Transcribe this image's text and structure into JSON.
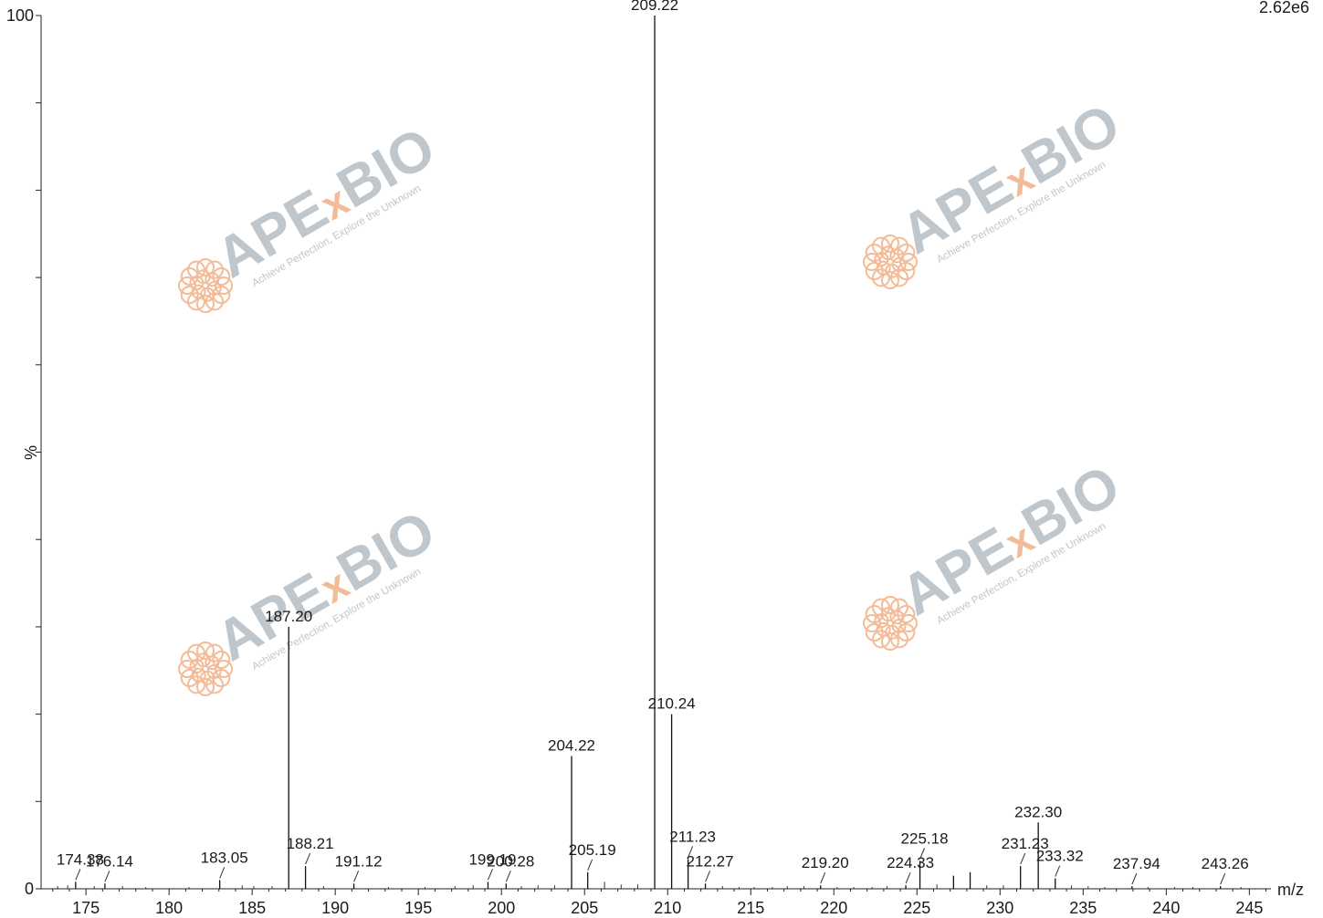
{
  "chart_data": {
    "type": "bar",
    "subtype": "mass-spectrum-stick",
    "ylabel": "%",
    "xlabel": "m/z",
    "ylim": [
      0,
      100
    ],
    "xlim": [
      172.3,
      246.3
    ],
    "y_ticks": [
      0,
      10,
      20,
      30,
      40,
      50,
      60,
      70,
      80,
      90,
      100
    ],
    "y_tick_labels": {
      "0": "0",
      "100": "100"
    },
    "x_ticks": [
      175,
      180,
      185,
      190,
      195,
      200,
      205,
      210,
      215,
      220,
      225,
      230,
      235,
      240,
      245
    ],
    "intensity_max_label": "2.62e6",
    "grid": false,
    "peaks": [
      {
        "mz": 174.38,
        "intensity": 0.8,
        "label": "174.38"
      },
      {
        "mz": 176.14,
        "intensity": 0.6,
        "label": "176.14"
      },
      {
        "mz": 183.05,
        "intensity": 1.0,
        "label": "183.05"
      },
      {
        "mz": 187.2,
        "intensity": 30.0,
        "label": "187.20"
      },
      {
        "mz": 188.21,
        "intensity": 2.6,
        "label": "188.21"
      },
      {
        "mz": 191.12,
        "intensity": 0.6,
        "label": "191.12"
      },
      {
        "mz": 199.19,
        "intensity": 0.8,
        "label": "199.19"
      },
      {
        "mz": 200.28,
        "intensity": 0.6,
        "label": "200.28"
      },
      {
        "mz": 204.22,
        "intensity": 15.2,
        "label": "204.22"
      },
      {
        "mz": 205.19,
        "intensity": 1.9,
        "label": "205.19"
      },
      {
        "mz": 209.22,
        "intensity": 100.0,
        "label": "209.22"
      },
      {
        "mz": 210.24,
        "intensity": 20.0,
        "label": "210.24"
      },
      {
        "mz": 211.23,
        "intensity": 3.4,
        "label": "211.23"
      },
      {
        "mz": 212.27,
        "intensity": 0.6,
        "label": "212.27"
      },
      {
        "mz": 219.2,
        "intensity": 0.4,
        "label": "219.20"
      },
      {
        "mz": 224.33,
        "intensity": 0.4,
        "label": "224.33"
      },
      {
        "mz": 225.18,
        "intensity": 3.2,
        "label": "225.18"
      },
      {
        "mz": 227.2,
        "intensity": 1.5,
        "label": ""
      },
      {
        "mz": 228.2,
        "intensity": 1.9,
        "label": ""
      },
      {
        "mz": 231.23,
        "intensity": 2.6,
        "label": "231.23"
      },
      {
        "mz": 232.3,
        "intensity": 7.6,
        "label": "232.30"
      },
      {
        "mz": 233.32,
        "intensity": 1.2,
        "label": "233.32"
      },
      {
        "mz": 237.94,
        "intensity": 0.3,
        "label": "237.94"
      },
      {
        "mz": 243.26,
        "intensity": 0.3,
        "label": "243.26"
      }
    ],
    "minor_peaks": [
      {
        "mz": 173.3,
        "intensity": 0.3
      },
      {
        "mz": 173.9,
        "intensity": 0.4
      },
      {
        "mz": 175.5,
        "intensity": 0.3
      },
      {
        "mz": 177.2,
        "intensity": 0.3
      },
      {
        "mz": 178.6,
        "intensity": 0.2
      },
      {
        "mz": 181.2,
        "intensity": 0.2
      },
      {
        "mz": 184.4,
        "intensity": 0.4
      },
      {
        "mz": 185.1,
        "intensity": 0.3
      },
      {
        "mz": 186.2,
        "intensity": 0.3
      },
      {
        "mz": 189.3,
        "intensity": 0.3
      },
      {
        "mz": 193.2,
        "intensity": 0.2
      },
      {
        "mz": 195.4,
        "intensity": 0.2
      },
      {
        "mz": 197.2,
        "intensity": 0.3
      },
      {
        "mz": 198.3,
        "intensity": 0.4
      },
      {
        "mz": 201.2,
        "intensity": 0.3
      },
      {
        "mz": 202.2,
        "intensity": 0.4
      },
      {
        "mz": 203.2,
        "intensity": 0.4
      },
      {
        "mz": 206.2,
        "intensity": 0.8
      },
      {
        "mz": 207.2,
        "intensity": 0.5
      },
      {
        "mz": 208.2,
        "intensity": 0.5
      },
      {
        "mz": 213.3,
        "intensity": 0.3
      },
      {
        "mz": 214.3,
        "intensity": 0.2
      },
      {
        "mz": 215.2,
        "intensity": 0.2
      },
      {
        "mz": 216.3,
        "intensity": 0.2
      },
      {
        "mz": 217.2,
        "intensity": 0.3
      },
      {
        "mz": 218.2,
        "intensity": 0.3
      },
      {
        "mz": 220.2,
        "intensity": 0.2
      },
      {
        "mz": 221.2,
        "intensity": 0.2
      },
      {
        "mz": 222.3,
        "intensity": 0.2
      },
      {
        "mz": 223.2,
        "intensity": 0.3
      },
      {
        "mz": 226.2,
        "intensity": 0.5
      },
      {
        "mz": 229.2,
        "intensity": 0.4
      },
      {
        "mz": 230.2,
        "intensity": 0.4
      },
      {
        "mz": 234.3,
        "intensity": 0.4
      },
      {
        "mz": 235.3,
        "intensity": 0.3
      },
      {
        "mz": 236.3,
        "intensity": 0.2
      },
      {
        "mz": 238.9,
        "intensity": 0.2
      },
      {
        "mz": 240.5,
        "intensity": 0.2
      },
      {
        "mz": 241.6,
        "intensity": 0.2
      },
      {
        "mz": 244.5,
        "intensity": 0.2
      }
    ]
  },
  "watermark": {
    "brand": "APExBIO",
    "brand_parts": [
      "APE",
      "x",
      "BIO"
    ],
    "tagline": "Achieve Perfection, Explore the Unknown",
    "brand_color": "#b9c0c7",
    "accent_color": "#f2b48c"
  }
}
